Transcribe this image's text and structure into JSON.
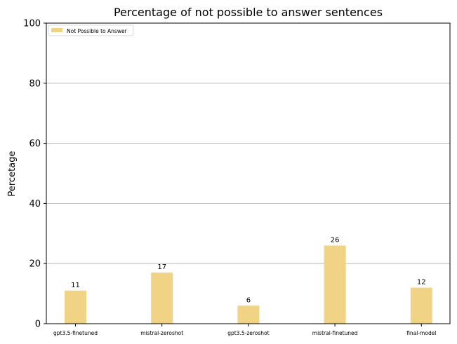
{
  "chart_data": {
    "type": "bar",
    "title": "Percentage of not possible to answer sentences",
    "xlabel": "",
    "ylabel": "Percetage",
    "categories": [
      "gpt3.5-finetuned",
      "mistral-zeroshot",
      "gpt3.5-zeroshot",
      "mistral-finetuned",
      "final-model"
    ],
    "series": [
      {
        "name": "Not Possible to Answer",
        "values": [
          11,
          17,
          6,
          26,
          12
        ]
      }
    ],
    "data_labels": [
      "11",
      "17",
      "6",
      "26",
      "12"
    ],
    "ylim": [
      0,
      100
    ],
    "yticks": [
      0,
      20,
      40,
      60,
      80,
      100
    ],
    "ytick_labels": [
      "0",
      "20",
      "40",
      "60",
      "80",
      "100"
    ],
    "grid": "horizontal",
    "legend_position": "top-left",
    "colors": {
      "bar": "#f0d384",
      "grid": "#b0b0b0",
      "axis": "#000000"
    }
  }
}
